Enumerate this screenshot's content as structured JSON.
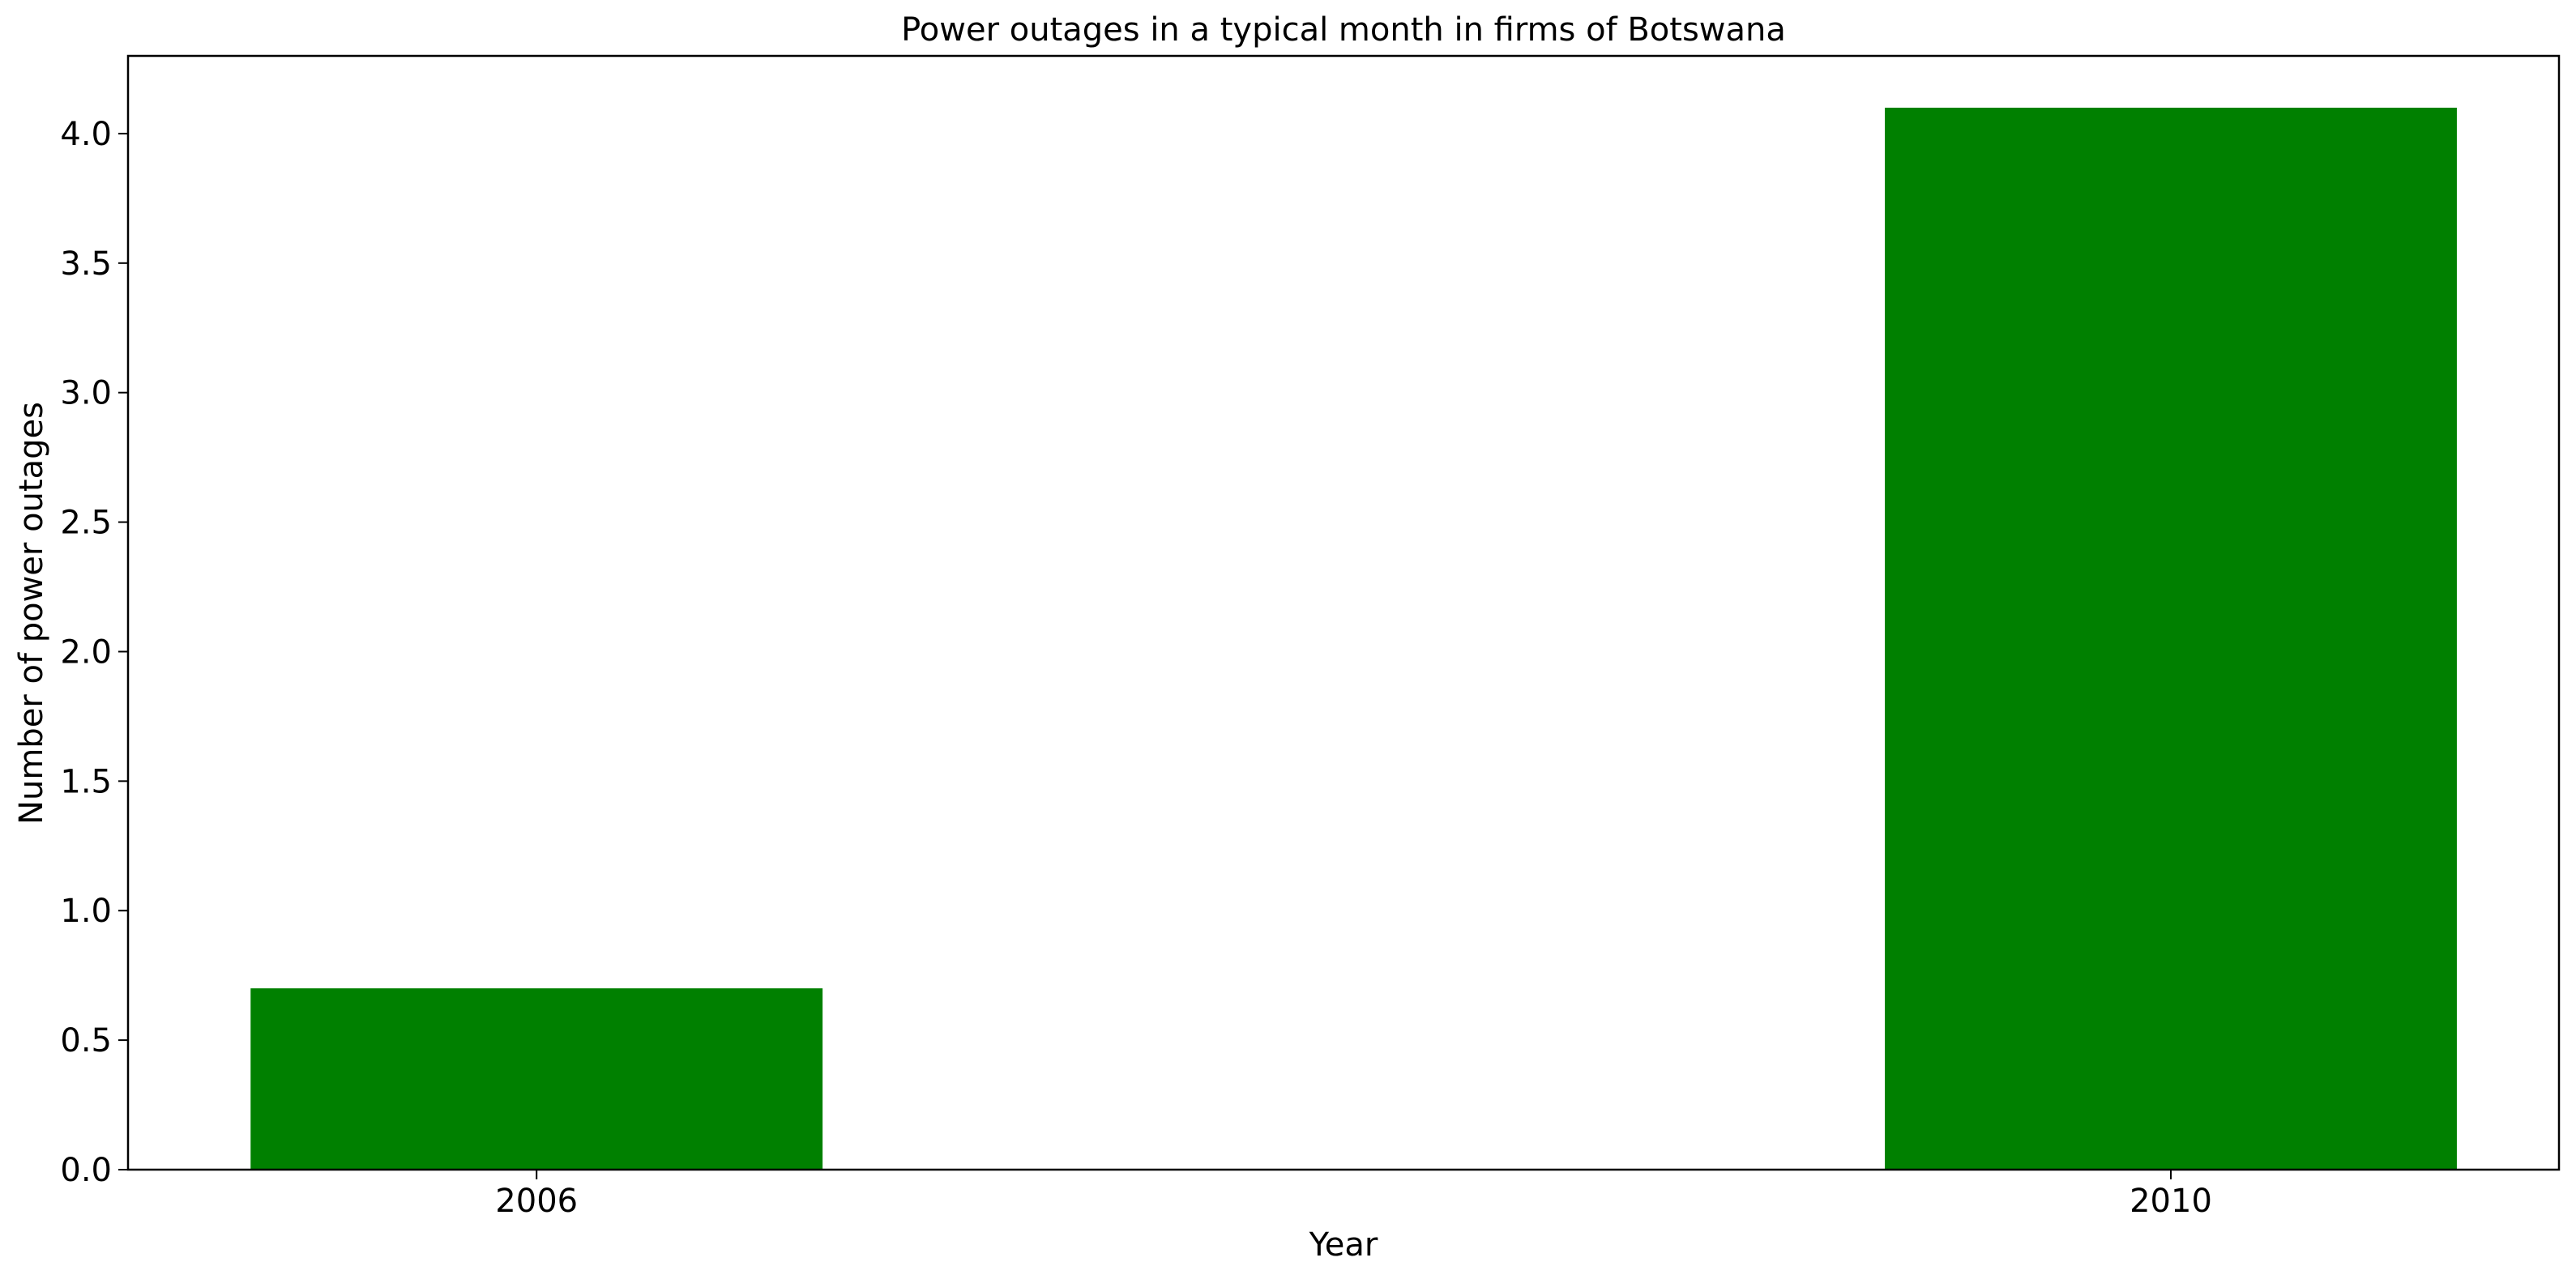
{
  "chart_data": {
    "type": "bar",
    "title": "Power outages in a typical month in firms of Botswana",
    "xlabel": "Year",
    "ylabel": "Number of power outages",
    "categories": [
      "2006",
      "2010"
    ],
    "values": [
      0.7,
      4.1
    ],
    "x_positions": [
      2006,
      2010
    ],
    "x_range": [
      2005.0,
      2010.95
    ],
    "bar_width_data_units": 1.4,
    "ylim": [
      0,
      4.3
    ],
    "yticks": [
      0.0,
      0.5,
      1.0,
      1.5,
      2.0,
      2.5,
      3.0,
      3.5,
      4.0
    ],
    "ytick_labels": [
      "0.0",
      "0.5",
      "1.0",
      "1.5",
      "2.0",
      "2.5",
      "3.0",
      "3.5",
      "4.0"
    ],
    "grid": false,
    "legend": "none",
    "bar_color": "#008000"
  }
}
